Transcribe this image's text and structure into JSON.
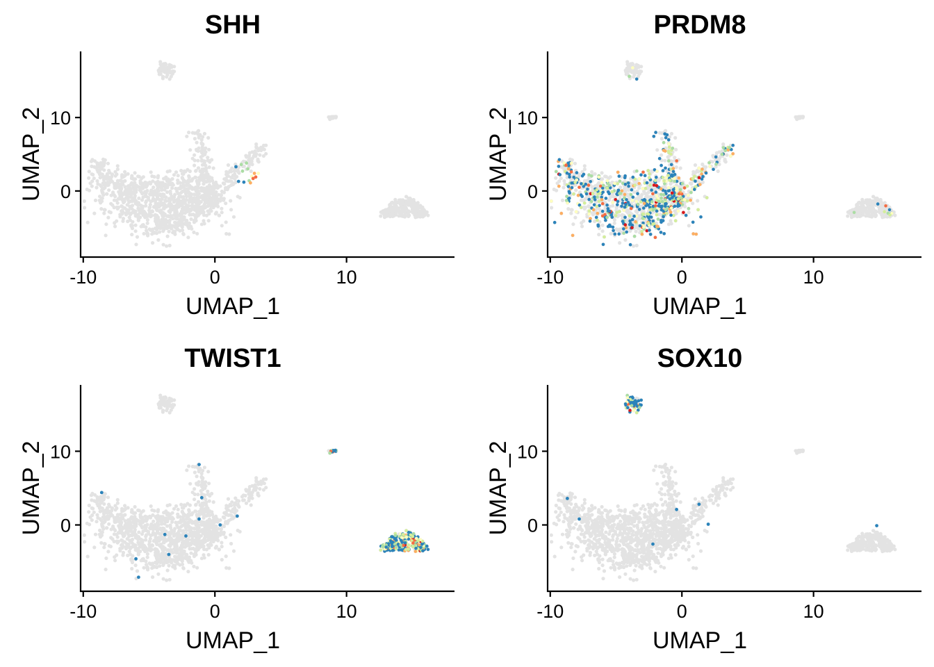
{
  "chart_data": [
    {
      "type": "scatter",
      "title": "SHH",
      "xlabel": "UMAP_1",
      "ylabel": "UMAP_2",
      "xlim": [
        -10.2,
        18.2
      ],
      "ylim": [
        -9,
        19
      ],
      "xticks": [
        -10,
        0,
        10
      ],
      "xtick_labels": [
        "-10",
        "0",
        "10"
      ],
      "yticks": [
        0,
        10
      ],
      "ytick_labels": [
        "0",
        "10"
      ],
      "background_color": "#e3e3e3",
      "expressed": [
        {
          "x": 1.6,
          "y": 3.3,
          "level": 1
        },
        {
          "x": 2.0,
          "y": 3.6,
          "level": 2
        },
        {
          "x": 2.4,
          "y": 3.8,
          "level": 2
        },
        {
          "x": 1.8,
          "y": 1.3,
          "level": 1
        },
        {
          "x": 2.2,
          "y": 1.2,
          "level": 1
        },
        {
          "x": 2.6,
          "y": 1.4,
          "level": 2
        },
        {
          "x": 2.8,
          "y": 2.0,
          "level": 4
        },
        {
          "x": 3.0,
          "y": 2.4,
          "level": 5
        },
        {
          "x": 3.3,
          "y": 2.4,
          "level": 4
        },
        {
          "x": 2.9,
          "y": 1.7,
          "level": 6
        },
        {
          "x": 2.5,
          "y": 3.0,
          "level": 2
        },
        {
          "x": 2.1,
          "y": 2.7,
          "level": 2
        },
        {
          "x": 2.7,
          "y": 1.1,
          "level": 5
        },
        {
          "x": 3.1,
          "y": 1.9,
          "level": 6
        }
      ]
    },
    {
      "type": "scatter",
      "title": "PRDM8",
      "xlabel": "UMAP_1",
      "ylabel": "UMAP_2",
      "xlim": [
        -10.2,
        18.2
      ],
      "ylim": [
        -9,
        19
      ],
      "xticks": [
        -10,
        0,
        10
      ],
      "xtick_labels": [
        "-10",
        "0",
        "10"
      ],
      "yticks": [
        0,
        10
      ],
      "ytick_labels": [
        "0",
        "10"
      ],
      "background_color": "#e3e3e3",
      "expressed_regions": [
        {
          "region": "main",
          "density": 0.45
        },
        {
          "region": "top_cluster",
          "density": 0.05
        },
        {
          "region": "right_cluster",
          "density": 0.04
        }
      ],
      "expressed": [
        {
          "x": -8.8,
          "y": 3.5,
          "level": 6
        },
        {
          "x": -8.6,
          "y": 3.0,
          "level": 5
        },
        {
          "x": -8.4,
          "y": 2.6,
          "level": 6
        },
        {
          "x": -8.0,
          "y": 1.5,
          "level": 4
        },
        {
          "x": -7.8,
          "y": 0.5,
          "level": 6
        },
        {
          "x": -0.4,
          "y": 0.4,
          "level": 4
        },
        {
          "x": 0.2,
          "y": -1.2,
          "level": 4
        },
        {
          "x": -4.0,
          "y": 15.6,
          "level": 2
        }
      ]
    },
    {
      "type": "scatter",
      "title": "TWIST1",
      "xlabel": "UMAP_1",
      "ylabel": "UMAP_2",
      "xlim": [
        -10.2,
        18.2
      ],
      "ylim": [
        -9,
        19
      ],
      "xticks": [
        -10,
        0,
        10
      ],
      "xtick_labels": [
        "-10",
        "0",
        "10"
      ],
      "yticks": [
        0,
        10
      ],
      "ytick_labels": [
        "0",
        "10"
      ],
      "background_color": "#e3e3e3",
      "expressed_regions": [
        {
          "region": "right_cluster",
          "density": 0.95
        },
        {
          "region": "small_cluster",
          "density": 0.9
        }
      ],
      "expressed": [
        {
          "x": -8.6,
          "y": 4.4,
          "level": 1
        },
        {
          "x": -1.0,
          "y": 3.7,
          "level": 1
        },
        {
          "x": -1.2,
          "y": 0.8,
          "level": 1
        },
        {
          "x": -2.2,
          "y": -1.5,
          "level": 1
        },
        {
          "x": -3.8,
          "y": -1.3,
          "level": 1
        },
        {
          "x": -3.5,
          "y": -4.0,
          "level": 1
        },
        {
          "x": -6.0,
          "y": -4.6,
          "level": 1
        },
        {
          "x": -5.8,
          "y": -7.1,
          "level": 1
        },
        {
          "x": 0.4,
          "y": 0.0,
          "level": 1
        },
        {
          "x": 1.7,
          "y": 1.2,
          "level": 1
        },
        {
          "x": -1.2,
          "y": 8.2,
          "level": 1
        }
      ]
    },
    {
      "type": "scatter",
      "title": "SOX10",
      "xlabel": "UMAP_1",
      "ylabel": "UMAP_2",
      "xlim": [
        -10.2,
        18.2
      ],
      "ylim": [
        -9,
        19
      ],
      "xticks": [
        -10,
        0,
        10
      ],
      "xtick_labels": [
        "-10",
        "0",
        "10"
      ],
      "yticks": [
        0,
        10
      ],
      "ytick_labels": [
        "0",
        "10"
      ],
      "background_color": "#e3e3e3",
      "expressed_regions": [
        {
          "region": "top_cluster",
          "density": 0.95
        }
      ],
      "expressed": [
        {
          "x": -8.7,
          "y": 3.6,
          "level": 1
        },
        {
          "x": -0.4,
          "y": 2.1,
          "level": 1
        },
        {
          "x": 1.3,
          "y": 2.8,
          "level": 1
        },
        {
          "x": 2.0,
          "y": 0.1,
          "level": 1
        },
        {
          "x": -7.8,
          "y": 0.8,
          "level": 1
        },
        {
          "x": -2.2,
          "y": -2.6,
          "level": 1
        },
        {
          "x": 14.8,
          "y": -0.1,
          "level": 1
        }
      ]
    }
  ],
  "color_scale": [
    "#2b83ba",
    "#abdda4",
    "#d4ee9c",
    "#ffffbf",
    "#fdae61",
    "#f46d43",
    "#d7191c"
  ]
}
